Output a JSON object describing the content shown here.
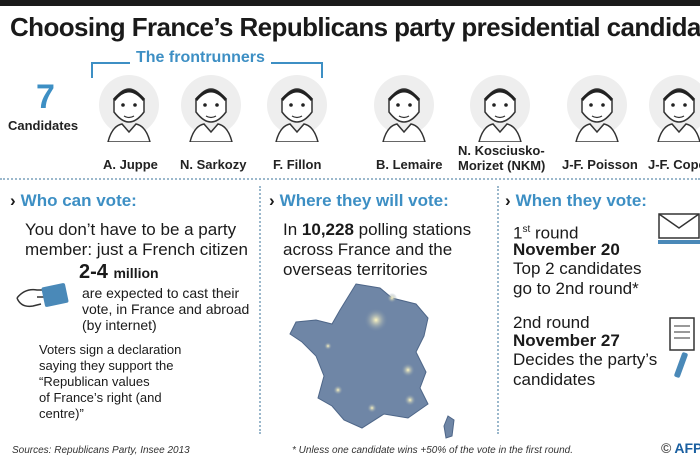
{
  "title": "Choosing France’s Republicans party presidential candidate",
  "candidates_count": "7",
  "candidates_label": "Candidates",
  "frontrunners_label": "The frontrunners",
  "candidates": [
    {
      "name": "A. Juppe",
      "icon": "portrait-icon"
    },
    {
      "name": "N. Sarkozy",
      "icon": "portrait-icon"
    },
    {
      "name": "F. Fillon",
      "icon": "portrait-icon"
    },
    {
      "name": "B. Lemaire",
      "icon": "portrait-icon"
    },
    {
      "name_line1": "N. Kosciusko-",
      "name_line2": "Morizet (NKM)",
      "icon": "portrait-icon"
    },
    {
      "name": "J-F. Poisson",
      "icon": "portrait-icon"
    },
    {
      "name": "J-F. Cope",
      "icon": "portrait-icon"
    }
  ],
  "who": {
    "heading": "Who can vote:",
    "intro_line1": "You don’t have to be a party",
    "intro_line2": "member: just a French citizen",
    "figure": "2-4",
    "figure_unit": "million",
    "figure_line1": "are expected to cast their",
    "figure_line2": "vote, in France and abroad",
    "figure_line3": "(by internet)",
    "decl_line1": "Voters sign a declaration",
    "decl_line2": "saying they support the",
    "decl_line3": "“Republican values",
    "decl_line4": "of France’s right (and",
    "decl_line5": "centre)”",
    "icon": "hand-voting-icon"
  },
  "where": {
    "heading": "Where they will vote:",
    "line1_prefix": "In",
    "line1_number": "10,228",
    "line1_suffix": "polling stations",
    "line2": "across France and the",
    "line3": "overseas territories",
    "map_icon": "france-map-icon"
  },
  "when": {
    "heading": "When they vote:",
    "round1_num": "1",
    "round1_sup": "st",
    "round1_word": "round",
    "round1_date": "November 20",
    "round1_line1": "Top 2 candidates",
    "round1_line2": "go to 2nd round*",
    "round2_label": "2nd round",
    "round2_date": "November 27",
    "round2_line1": "Decides the party’s",
    "round2_line2": "candidates",
    "envelope_icon": "envelope-icon",
    "document_icon": "document-pen-icon"
  },
  "footer": {
    "sources": "Sources: Republicans Party, Insee 2013",
    "note": "* Unless one candidate wins +50% of the vote in the first round.",
    "copyright": "©",
    "agency": "AFP"
  },
  "colors": {
    "accent": "#3d8fc4",
    "dark": "#1a1a1a",
    "map": "#6f86a6",
    "afp": "#1a5fa0"
  }
}
